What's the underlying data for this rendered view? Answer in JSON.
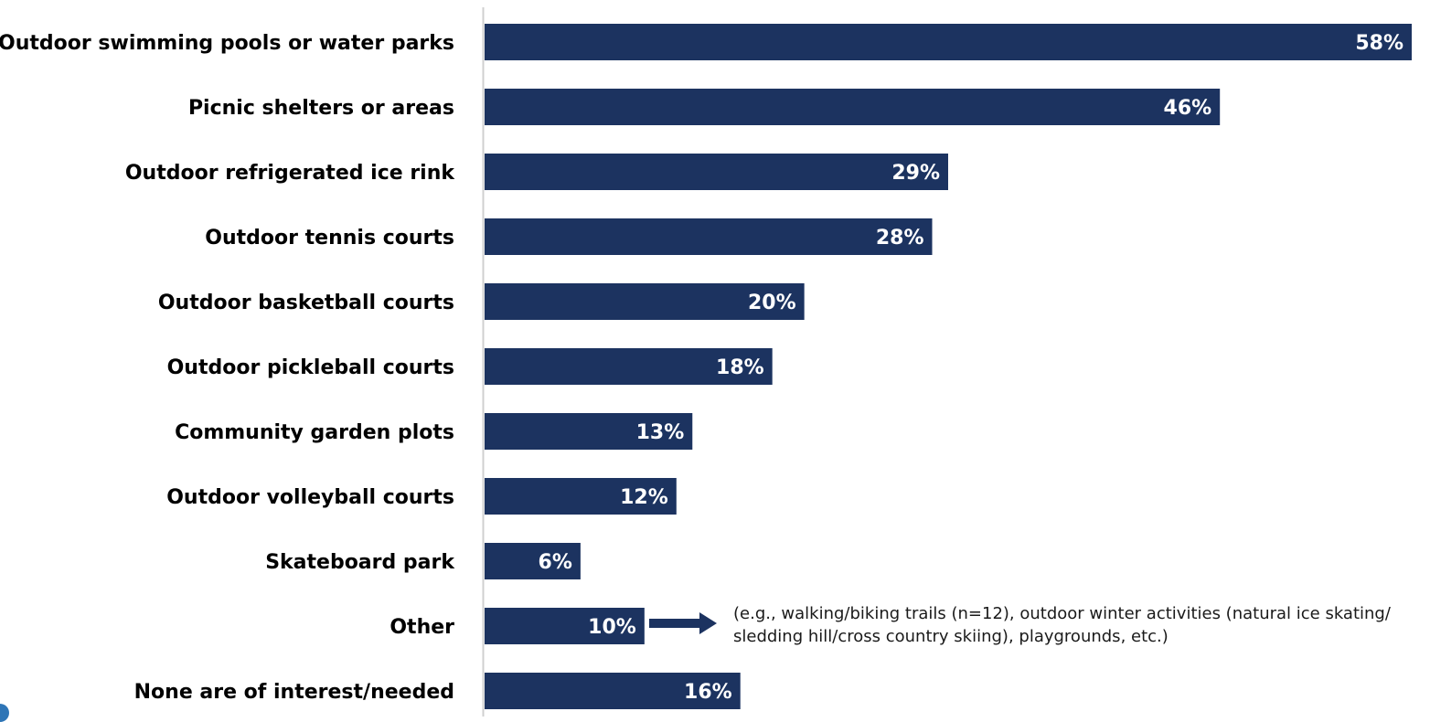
{
  "chart_data": {
    "type": "bar",
    "orientation": "horizontal",
    "categories": [
      "Outdoor swimming pools or water parks",
      "Picnic shelters or areas",
      "Outdoor refrigerated ice rink",
      "Outdoor tennis courts",
      "Outdoor basketball courts",
      "Outdoor pickleball courts",
      "Community garden plots",
      "Outdoor volleyball courts",
      "Skateboard park",
      "Other",
      "None are of interest/needed"
    ],
    "values": [
      58,
      46,
      29,
      28,
      20,
      18,
      13,
      12,
      6,
      10,
      16
    ],
    "value_labels": [
      "58%",
      "46%",
      "29%",
      "28%",
      "20%",
      "18%",
      "13%",
      "12%",
      "6%",
      "10%",
      "16%"
    ],
    "unit": "%",
    "xlim": [
      0,
      58
    ],
    "bar_color": "#1c3360",
    "value_label_color": "#ffffff",
    "grid": false,
    "legend": "none",
    "annotation": {
      "target_category": "Other",
      "lines": [
        "(e.g., walking/biking trails (n=12), outdoor winter activities (natural ice skating/",
        "sledding hill/cross country skiing), playgrounds, etc.)"
      ]
    }
  }
}
